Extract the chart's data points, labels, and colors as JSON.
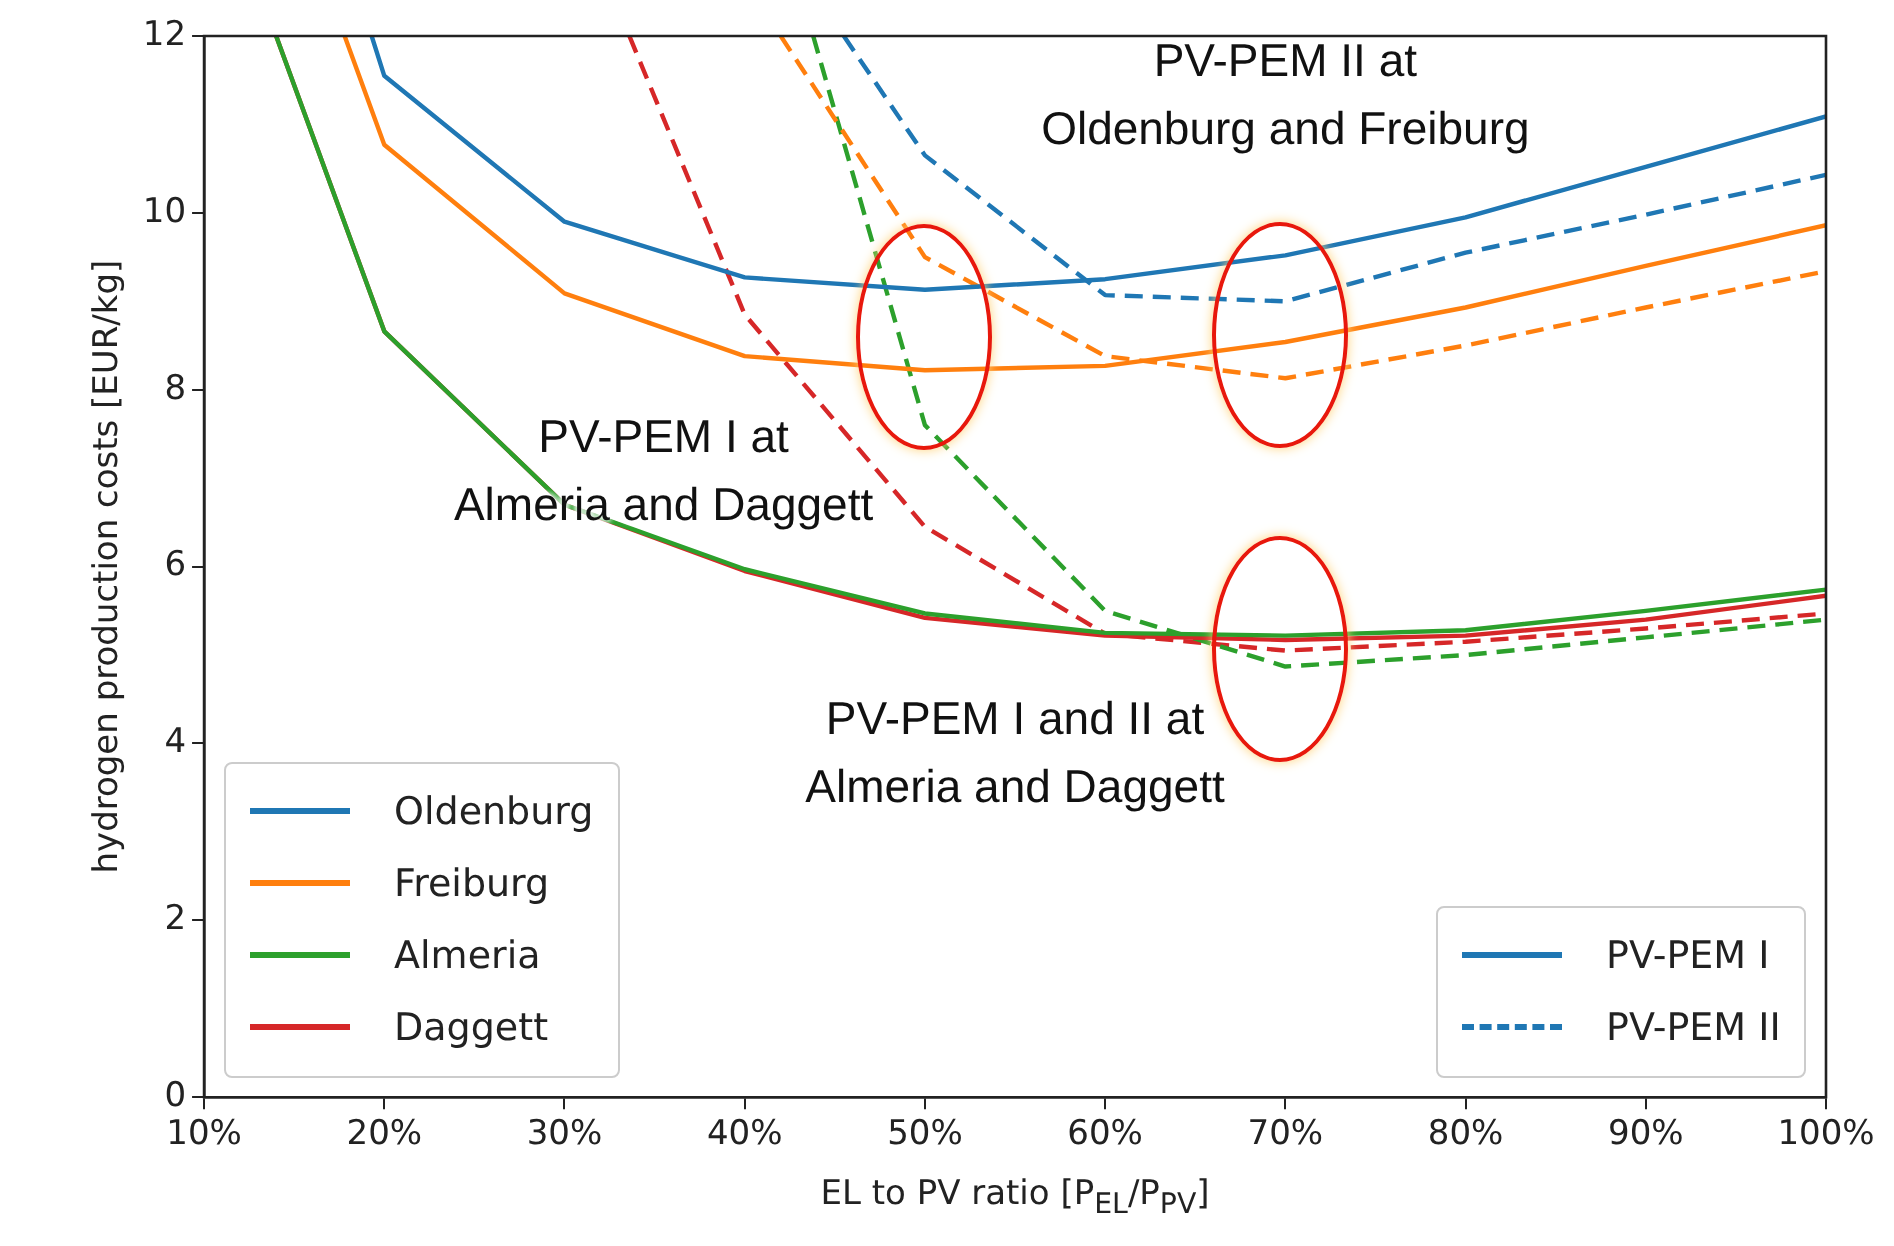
{
  "chart_data": {
    "type": "line",
    "xlabel": "EL to PV ratio [P$_{EL}$/P$_{PV}$]",
    "ylabel": "hydrogen production costs [EUR/kg]",
    "xlim": [
      10,
      100
    ],
    "xticks": [
      {
        "value": 10,
        "label": "10%"
      },
      {
        "value": 20,
        "label": "20%"
      },
      {
        "value": 30,
        "label": "30%"
      },
      {
        "value": 40,
        "label": "40%"
      },
      {
        "value": 50,
        "label": "50%"
      },
      {
        "value": 60,
        "label": "60%"
      },
      {
        "value": 70,
        "label": "70%"
      },
      {
        "value": 80,
        "label": "80%"
      },
      {
        "value": 90,
        "label": "90%"
      },
      {
        "value": 100,
        "label": "100%"
      }
    ],
    "ylim": [
      0,
      12
    ],
    "yticks": [
      0,
      2,
      4,
      6,
      8,
      10,
      12
    ],
    "grid": false,
    "legend": "bottom left",
    "series": [
      {
        "name": "Oldenburg",
        "color": "#1f77b4",
        "line_style": "solid",
        "x": [
          19.3,
          20,
          30,
          40,
          50,
          60,
          70,
          80,
          90,
          100
        ],
        "values": [
          12,
          11.55,
          9.9,
          9.27,
          9.13,
          9.25,
          9.52,
          9.95,
          10.52,
          11.09
        ]
      },
      {
        "name": "Freiburg",
        "color": "#ff7f0e",
        "line_style": "solid",
        "x": [
          17.8,
          20,
          30,
          40,
          50,
          60,
          70,
          80,
          90,
          100
        ],
        "values": [
          12,
          10.77,
          9.09,
          8.38,
          8.22,
          8.27,
          8.54,
          8.93,
          9.4,
          9.86
        ]
      },
      {
        "name": "Almeria",
        "color": "#2ca02c",
        "line_style": "solid",
        "x": [
          14,
          20,
          30,
          40,
          50,
          60,
          70,
          80,
          90,
          100
        ],
        "values": [
          12,
          8.66,
          6.7,
          5.97,
          5.47,
          5.25,
          5.22,
          5.28,
          5.5,
          5.74
        ]
      },
      {
        "name": "Daggett",
        "color": "#d62728",
        "line_style": "solid",
        "x": [
          14,
          20,
          30,
          40,
          50,
          60,
          70,
          80,
          90,
          100
        ],
        "values": [
          12,
          8.66,
          6.7,
          5.95,
          5.42,
          5.22,
          5.17,
          5.22,
          5.4,
          5.67
        ]
      },
      {
        "color": "#1f77b4",
        "line_style": "dashed",
        "x": [
          45.5,
          50,
          60,
          70,
          80,
          90,
          100
        ],
        "values": [
          12,
          10.65,
          9.07,
          9.0,
          9.55,
          9.98,
          10.43
        ]
      },
      {
        "color": "#ff7f0e",
        "line_style": "dashed",
        "x": [
          42,
          50,
          60,
          70,
          80,
          90,
          100
        ],
        "values": [
          12,
          9.5,
          8.38,
          8.13,
          8.5,
          8.93,
          9.34
        ]
      },
      {
        "color": "#2ca02c",
        "line_style": "dashed",
        "x": [
          43.8,
          50,
          60,
          70,
          80,
          90,
          100
        ],
        "values": [
          12,
          7.6,
          5.5,
          4.87,
          5.0,
          5.2,
          5.4
        ]
      },
      {
        "color": "#d62728",
        "line_style": "dashed",
        "x": [
          33.6,
          40,
          50,
          60,
          70,
          80,
          90,
          100
        ],
        "values": [
          12,
          8.85,
          6.45,
          5.24,
          5.05,
          5.15,
          5.3,
          5.47
        ]
      }
    ],
    "annotations": [
      "PV-PEM II at\nOldenburg and Freiburg",
      "PV-PEM I at\nAlmeria and Daggett",
      "PV-PEM I and II at\nAlmeria and Daggett",
      "PV-PEM I",
      "PV-PEM II"
    ]
  }
}
